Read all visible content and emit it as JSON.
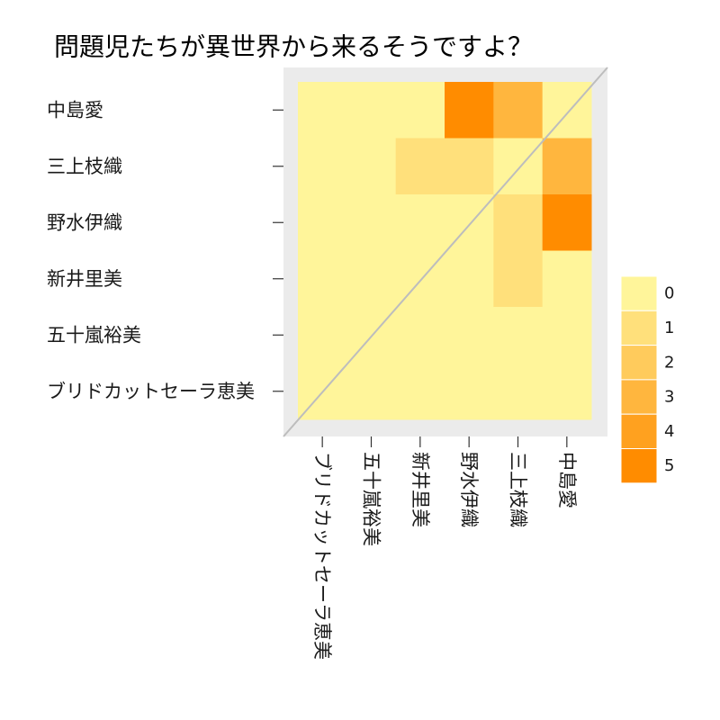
{
  "chart_data": {
    "type": "heatmap",
    "title": "問題児たちが異世界から来るそうですよ？",
    "xlabel": "",
    "ylabel": "",
    "x_categories": [
      "ブリドカットセーラ恵美",
      "五十嵐裕美",
      "新井里美",
      "野水伊織",
      "三上枝織",
      "中島愛"
    ],
    "y_categories": [
      "中島愛",
      "三上枝織",
      "野水伊織",
      "新井里美",
      "五十嵐裕美",
      "ブリドカットセーラ恵美"
    ],
    "values": [
      [
        0,
        0,
        0,
        5,
        3,
        0
      ],
      [
        0,
        0,
        1,
        1,
        0,
        3
      ],
      [
        0,
        0,
        0,
        0,
        1,
        5
      ],
      [
        0,
        0,
        0,
        0,
        1,
        0
      ],
      [
        0,
        0,
        0,
        0,
        0,
        0
      ],
      [
        0,
        0,
        0,
        0,
        0,
        0
      ]
    ],
    "legend_position": "right",
    "legend_breaks": [
      "0",
      "1",
      "2",
      "3",
      "4",
      "5"
    ],
    "value_range": [
      0,
      5
    ],
    "color_scale": {
      "low": "#FFF59A",
      "high": "#FF8C00"
    },
    "diagonal_line": true,
    "grid": false
  },
  "colors": {
    "page_background": "#FFFFFF",
    "panel_background": "#EBEBEB",
    "diagonal_line": "#BDBDBD"
  }
}
